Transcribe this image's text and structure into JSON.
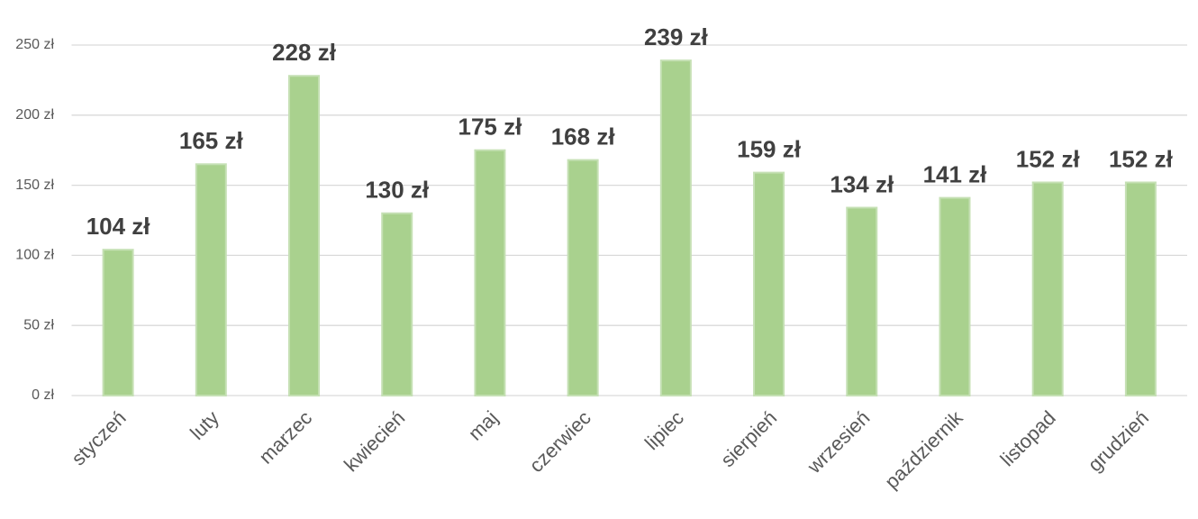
{
  "chart_data": {
    "type": "bar",
    "categories": [
      "styczeń",
      "luty",
      "marzec",
      "kwiecień",
      "maj",
      "czerwiec",
      "lipiec",
      "sierpień",
      "wrzesień",
      "październik",
      "listopad",
      "grudzień"
    ],
    "values": [
      104,
      165,
      228,
      130,
      175,
      168,
      239,
      159,
      134,
      141,
      152,
      152
    ],
    "value_labels": [
      "104 zł",
      "165 zł",
      "228 zł",
      "130 zł",
      "175 zł",
      "168 zł",
      "239 zł",
      "159 zł",
      "134 zł",
      "141 zł",
      "152 zł",
      "152 zł"
    ],
    "color": "#a9d18e",
    "ylim": [
      0,
      250
    ],
    "yticks": [
      {
        "value": 0,
        "label": "0 zł"
      },
      {
        "value": 50,
        "label": "50 zł"
      },
      {
        "value": 100,
        "label": "100 zł"
      },
      {
        "value": 150,
        "label": "150 zł"
      },
      {
        "value": 200,
        "label": "200 zł"
      },
      {
        "value": 250,
        "label": "250 zł"
      }
    ],
    "grid": true
  }
}
